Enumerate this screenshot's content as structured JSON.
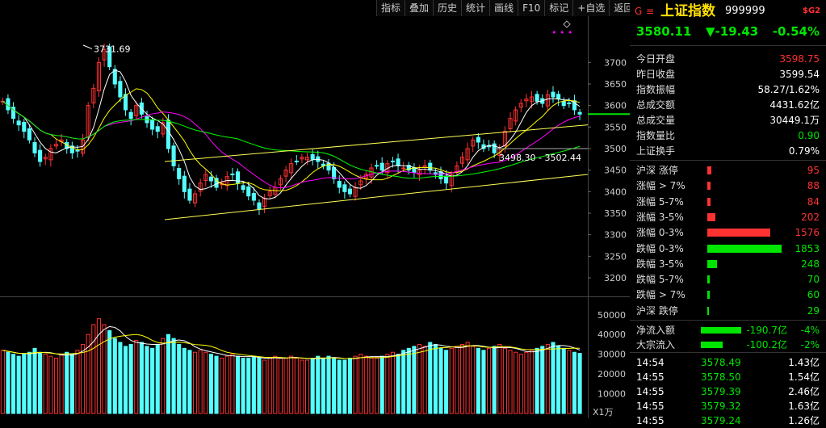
{
  "toolbar": {
    "buttons": [
      "指标",
      "叠加",
      "历史",
      "统计",
      "画线",
      "F10",
      "标记",
      "+自选",
      "返回"
    ]
  },
  "quote": {
    "flag_icon": "G",
    "menu_icon": "≡",
    "title": "上证指数",
    "code": "999999",
    "badge": "$G2",
    "price": "3580.11",
    "change": "▼-19.43",
    "change_pct": "-0.54%"
  },
  "stats": [
    {
      "label": "今日开盘",
      "value": "3598.75",
      "color": "red"
    },
    {
      "label": "昨日收盘",
      "value": "3599.54",
      "color": "white"
    },
    {
      "label": "指数振幅",
      "value": "58.27/1.62%",
      "color": "white"
    },
    {
      "label": "总成交额",
      "value": "4431.62亿",
      "color": "white"
    },
    {
      "label": "总成交量",
      "value": "30449.1万",
      "color": "white"
    },
    {
      "label": "指数量比",
      "value": "0.90",
      "color": "green"
    },
    {
      "label": "上证换手",
      "value": "0.79%",
      "color": "white"
    }
  ],
  "distribution": [
    {
      "label": "沪深 涨停",
      "count": 95,
      "color": "red"
    },
    {
      "label": "涨幅 > 7%",
      "count": 88,
      "color": "red"
    },
    {
      "label": "涨幅 5-7%",
      "count": 84,
      "color": "red"
    },
    {
      "label": "涨幅 3-5%",
      "count": 202,
      "color": "red"
    },
    {
      "label": "涨幅 0-3%",
      "count": 1576,
      "color": "red"
    },
    {
      "label": "跌幅 0-3%",
      "count": 1853,
      "color": "green"
    },
    {
      "label": "跌幅 3-5%",
      "count": 248,
      "color": "green"
    },
    {
      "label": "跌幅 5-7%",
      "count": 70,
      "color": "green"
    },
    {
      "label": "跌幅 > 7%",
      "count": 60,
      "color": "green"
    },
    {
      "label": "沪深 跌停",
      "count": 29,
      "color": "green"
    }
  ],
  "flows": [
    {
      "label": "净流入额",
      "value": "-190.7亿",
      "pct": "-4%",
      "bar_fraction": 0.9
    },
    {
      "label": "大宗流入",
      "value": "-100.2亿",
      "pct": "-2%",
      "bar_fraction": 0.48
    }
  ],
  "ticks": [
    {
      "time": "14:54",
      "price": "3578.49",
      "vol": "1.43亿"
    },
    {
      "time": "14:55",
      "price": "3578.50",
      "vol": "1.54亿"
    },
    {
      "time": "14:55",
      "price": "3579.39",
      "vol": "2.46亿"
    },
    {
      "time": "14:55",
      "price": "3579.32",
      "vol": "1.63亿"
    },
    {
      "time": "14:55",
      "price": "3579.24",
      "vol": "1.26亿"
    }
  ],
  "chart": {
    "price_axis": [
      "3700",
      "3650",
      "3600",
      "3550",
      "3500",
      "3450",
      "3400",
      "3350",
      "3300",
      "3250",
      "3200"
    ],
    "volume_axis": [
      "50000",
      "40000",
      "30000",
      "20000",
      "10000"
    ],
    "volume_unit": "X1万",
    "high_label": "3731.69",
    "channel_label": "3498.30 - 3502.44",
    "last_price": 3580.11
  },
  "chart_data": {
    "type": "candlestick",
    "ylim": [
      3170,
      3770
    ],
    "volume_ylim": [
      0,
      54000
    ],
    "candles_close": [
      3610,
      3590,
      3570,
      3555,
      3540,
      3520,
      3490,
      3470,
      3480,
      3500,
      3510,
      3520,
      3500,
      3490,
      3495,
      3520,
      3600,
      3640,
      3700,
      3730,
      3690,
      3650,
      3620,
      3590,
      3570,
      3600,
      3580,
      3560,
      3545,
      3540,
      3560,
      3500,
      3460,
      3430,
      3400,
      3380,
      3395,
      3420,
      3440,
      3425,
      3410,
      3420,
      3435,
      3440,
      3420,
      3405,
      3390,
      3380,
      3360,
      3385,
      3400,
      3410,
      3430,
      3450,
      3465,
      3470,
      3480,
      3480,
      3475,
      3470,
      3460,
      3450,
      3430,
      3410,
      3400,
      3395,
      3410,
      3425,
      3440,
      3455,
      3460,
      3450,
      3465,
      3470,
      3460,
      3455,
      3450,
      3445,
      3450,
      3460,
      3450,
      3440,
      3430,
      3420,
      3440,
      3460,
      3480,
      3500,
      3520,
      3515,
      3500,
      3505,
      3490,
      3500,
      3540,
      3570,
      3590,
      3605,
      3615,
      3620,
      3610,
      3605,
      3625,
      3620,
      3615,
      3600,
      3605,
      3590,
      3580
    ],
    "volumes": [
      32000,
      31000,
      30000,
      29000,
      30000,
      31000,
      33000,
      31000,
      30000,
      29000,
      28000,
      30000,
      31000,
      30000,
      32000,
      35000,
      40000,
      45000,
      48000,
      45000,
      42000,
      38000,
      36000,
      34000,
      35000,
      37000,
      36000,
      34000,
      33000,
      35000,
      38000,
      40000,
      38000,
      35000,
      33000,
      32000,
      31000,
      32000,
      31000,
      30000,
      29000,
      28000,
      29000,
      30000,
      29000,
      28000,
      28000,
      29000,
      28000,
      27000,
      28000,
      29000,
      28000,
      28000,
      29000,
      28000,
      27000,
      27000,
      28000,
      29000,
      28000,
      29000,
      28000,
      27000,
      27000,
      28000,
      29000,
      30000,
      29000,
      28000,
      28000,
      29000,
      30000,
      31000,
      30000,
      32000,
      33000,
      34000,
      35000,
      34000,
      36000,
      35000,
      33000,
      32000,
      33000,
      34000,
      35000,
      36000,
      34000,
      33000,
      32000,
      33000,
      34000,
      35000,
      33000,
      32000,
      31000,
      30000,
      31000,
      32000,
      33000,
      34000,
      35000,
      36000,
      34000,
      33000,
      32000,
      31000,
      30449
    ]
  }
}
